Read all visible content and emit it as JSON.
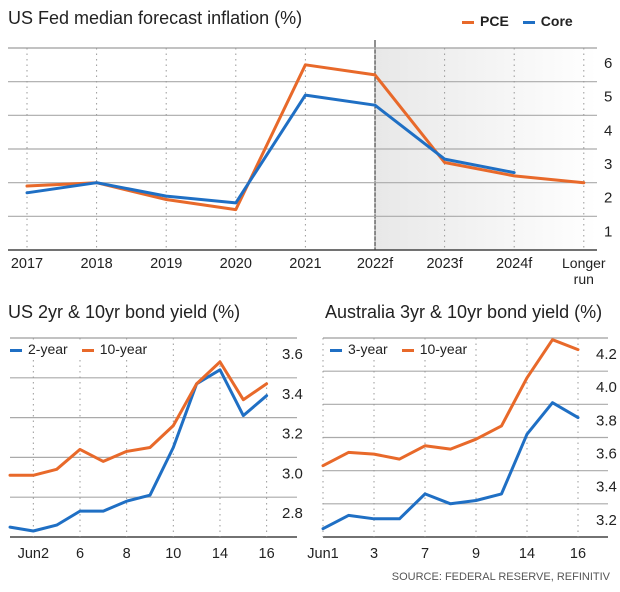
{
  "colors": {
    "orange": "#e8692a",
    "blue": "#1f6fc4"
  },
  "source": "SOURCE: FEDERAL RESERVE, REFINITIV",
  "chart_data": [
    {
      "type": "line",
      "title": "US Fed median forecast inflation (%)",
      "categories": [
        "2017",
        "2018",
        "2019",
        "2020",
        "2021",
        "2022f",
        "2023f",
        "2024f",
        "Longer run"
      ],
      "series": [
        {
          "name": "PCE",
          "color": "#e8692a",
          "values": [
            1.9,
            2.0,
            1.5,
            1.2,
            5.5,
            5.2,
            2.6,
            2.2,
            2.0
          ]
        },
        {
          "name": "Core",
          "color": "#1f6fc4",
          "values": [
            1.7,
            2.0,
            1.6,
            1.4,
            4.6,
            4.3,
            2.7,
            2.3,
            null
          ]
        }
      ],
      "yticks": [
        "1",
        "2",
        "3",
        "4",
        "5",
        "6"
      ],
      "ylim": [
        0,
        6
      ],
      "shaded_from": "2022f",
      "legend": "top-right",
      "grid": true
    },
    {
      "type": "line",
      "title": "US 2yr & 10yr bond yield (%)",
      "x": [
        "Jun 1",
        "Jun 2",
        "Jun 3",
        "Jun 6",
        "Jun 7",
        "Jun 8",
        "Jun 9",
        "Jun 10",
        "Jun 13",
        "Jun 14",
        "Jun 15",
        "Jun 16"
      ],
      "xtick_labels": [
        {
          "i": 1,
          "label": "Jun2"
        },
        {
          "i": 3,
          "label": "6"
        },
        {
          "i": 5,
          "label": "8"
        },
        {
          "i": 7,
          "label": "10"
        },
        {
          "i": 9,
          "label": "14"
        },
        {
          "i": 11,
          "label": "16"
        }
      ],
      "series": [
        {
          "name": "2-year",
          "color": "#1f6fc4",
          "values": [
            2.65,
            2.63,
            2.66,
            2.73,
            2.73,
            2.78,
            2.81,
            3.05,
            3.37,
            3.44,
            3.21,
            3.31
          ]
        },
        {
          "name": "10-year",
          "color": "#e8692a",
          "values": [
            2.91,
            2.91,
            2.94,
            3.04,
            2.98,
            3.03,
            3.05,
            3.16,
            3.37,
            3.48,
            3.29,
            3.37
          ]
        }
      ],
      "yticks": [
        "2.8",
        "3.0",
        "3.2",
        "3.4",
        "3.6"
      ],
      "ylim": [
        2.6,
        3.6
      ],
      "legend": "top-left",
      "grid": true
    },
    {
      "type": "line",
      "title": "Australia 3yr & 10yr bond yield (%)",
      "x": [
        "Jun 1",
        "Jun 2",
        "Jun 3",
        "Jun 6",
        "Jun 7",
        "Jun 8",
        "Jun 9",
        "Jun 10",
        "Jun 14",
        "Jun 15",
        "Jun 16"
      ],
      "xtick_labels": [
        {
          "i": 0,
          "label": "Jun1"
        },
        {
          "i": 2,
          "label": "3"
        },
        {
          "i": 4,
          "label": "7"
        },
        {
          "i": 6,
          "label": "9"
        },
        {
          "i": 8,
          "label": "14"
        },
        {
          "i": 10,
          "label": "16"
        }
      ],
      "series": [
        {
          "name": "3-year",
          "color": "#1f6fc4",
          "values": [
            3.05,
            3.13,
            3.11,
            3.11,
            3.26,
            3.2,
            3.22,
            3.26,
            3.62,
            3.81,
            3.72
          ]
        },
        {
          "name": "10-year",
          "color": "#e8692a",
          "values": [
            3.43,
            3.51,
            3.5,
            3.47,
            3.55,
            3.53,
            3.59,
            3.67,
            3.96,
            4.19,
            4.13
          ]
        }
      ],
      "yticks": [
        "3.2",
        "3.4",
        "3.6",
        "3.8",
        "4.0",
        "4.2"
      ],
      "ylim": [
        3.0,
        4.2
      ],
      "legend": "top-left",
      "grid": true
    }
  ]
}
